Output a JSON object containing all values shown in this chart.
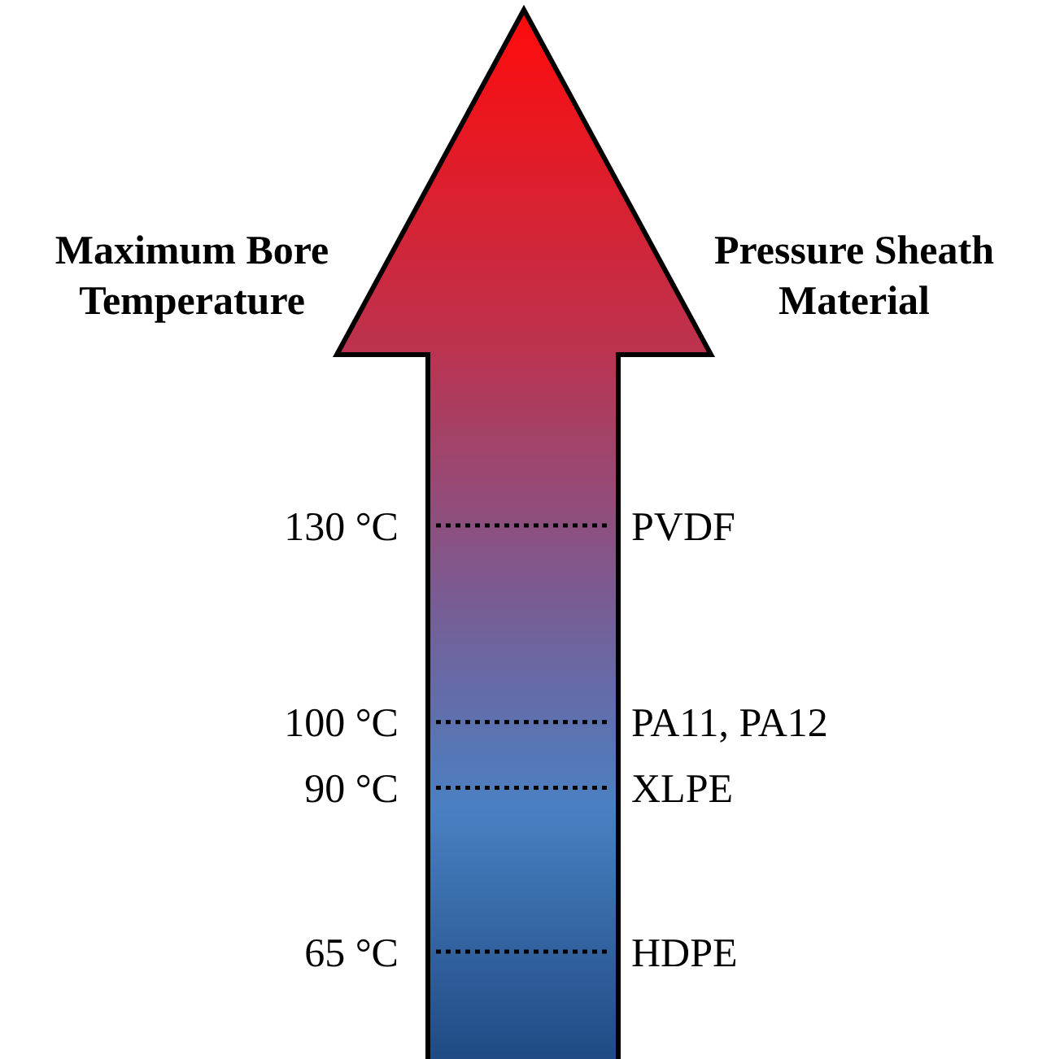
{
  "chart_data": {
    "type": "other",
    "ylabel": "Maximum Bore Temperature",
    "y2label": "Pressure Sheath Material",
    "categories": [
      "PVDF",
      "PA11, PA12",
      "XLPE",
      "HDPE"
    ],
    "values": [
      130,
      100,
      90,
      65
    ],
    "value_labels": [
      "130 °C",
      "100 °C",
      "90 °C",
      "65 °C"
    ]
  }
}
